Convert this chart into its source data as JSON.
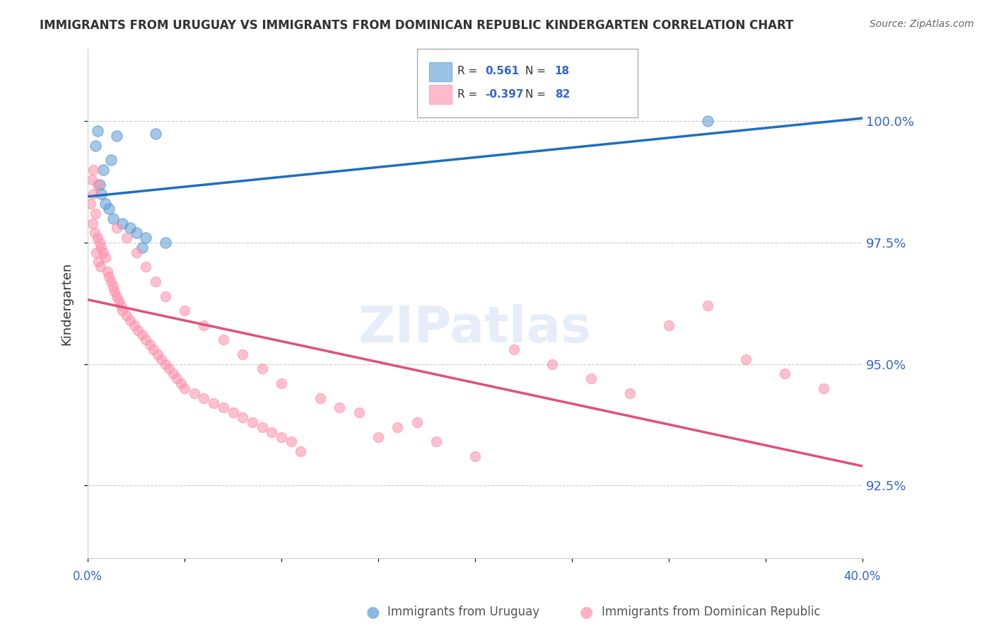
{
  "title": "IMMIGRANTS FROM URUGUAY VS IMMIGRANTS FROM DOMINICAN REPUBLIC KINDERGARTEN CORRELATION CHART",
  "source": "Source: ZipAtlas.com",
  "ylabel": "Kindergarten",
  "y_tick_values": [
    100.0,
    97.5,
    95.0,
    92.5
  ],
  "x_range": [
    0.0,
    40.0
  ],
  "y_range": [
    91.0,
    101.5
  ],
  "legend_r_blue": "0.561",
  "legend_n_blue": "18",
  "legend_r_pink": "-0.397",
  "legend_n_pink": "82",
  "blue_color": "#5B9BD5",
  "pink_color": "#FF8FAB",
  "blue_line_color": "#1F6FBF",
  "pink_line_color": "#E0507A",
  "watermark": "ZIPatlas",
  "blue_dots": [
    [
      0.5,
      99.8
    ],
    [
      1.5,
      99.7
    ],
    [
      3.5,
      99.75
    ],
    [
      1.2,
      99.2
    ],
    [
      0.8,
      99.0
    ],
    [
      0.6,
      98.7
    ],
    [
      0.7,
      98.5
    ],
    [
      0.9,
      98.3
    ],
    [
      1.1,
      98.2
    ],
    [
      1.3,
      98.0
    ],
    [
      1.8,
      97.9
    ],
    [
      2.2,
      97.8
    ],
    [
      2.5,
      97.7
    ],
    [
      3.0,
      97.6
    ],
    [
      4.0,
      97.5
    ],
    [
      2.8,
      97.4
    ],
    [
      32.0,
      100.0
    ],
    [
      0.4,
      99.5
    ]
  ],
  "pink_dots": [
    [
      0.2,
      98.8
    ],
    [
      0.3,
      98.5
    ],
    [
      0.15,
      98.3
    ],
    [
      0.4,
      98.1
    ],
    [
      0.25,
      97.9
    ],
    [
      0.35,
      97.7
    ],
    [
      0.5,
      97.6
    ],
    [
      0.6,
      97.5
    ],
    [
      0.7,
      97.4
    ],
    [
      0.45,
      97.3
    ],
    [
      0.8,
      97.3
    ],
    [
      0.9,
      97.2
    ],
    [
      0.55,
      97.1
    ],
    [
      0.65,
      97.0
    ],
    [
      1.0,
      96.9
    ],
    [
      1.1,
      96.8
    ],
    [
      1.2,
      96.7
    ],
    [
      1.3,
      96.6
    ],
    [
      1.4,
      96.5
    ],
    [
      1.5,
      96.4
    ],
    [
      1.6,
      96.3
    ],
    [
      1.7,
      96.2
    ],
    [
      1.8,
      96.1
    ],
    [
      2.0,
      96.0
    ],
    [
      2.2,
      95.9
    ],
    [
      2.4,
      95.8
    ],
    [
      2.6,
      95.7
    ],
    [
      2.8,
      95.6
    ],
    [
      3.0,
      95.5
    ],
    [
      3.2,
      95.4
    ],
    [
      3.4,
      95.3
    ],
    [
      3.6,
      95.2
    ],
    [
      3.8,
      95.1
    ],
    [
      4.0,
      95.0
    ],
    [
      4.2,
      94.9
    ],
    [
      4.4,
      94.8
    ],
    [
      4.6,
      94.7
    ],
    [
      4.8,
      94.6
    ],
    [
      5.0,
      94.5
    ],
    [
      5.5,
      94.4
    ],
    [
      6.0,
      94.3
    ],
    [
      6.5,
      94.2
    ],
    [
      7.0,
      94.1
    ],
    [
      7.5,
      94.0
    ],
    [
      8.0,
      93.9
    ],
    [
      8.5,
      93.8
    ],
    [
      9.0,
      93.7
    ],
    [
      9.5,
      93.6
    ],
    [
      10.0,
      93.5
    ],
    [
      10.5,
      93.4
    ],
    [
      0.3,
      99.0
    ],
    [
      0.5,
      98.7
    ],
    [
      1.5,
      97.8
    ],
    [
      2.0,
      97.6
    ],
    [
      2.5,
      97.3
    ],
    [
      3.0,
      97.0
    ],
    [
      3.5,
      96.7
    ],
    [
      4.0,
      96.4
    ],
    [
      5.0,
      96.1
    ],
    [
      6.0,
      95.8
    ],
    [
      7.0,
      95.5
    ],
    [
      8.0,
      95.2
    ],
    [
      9.0,
      94.9
    ],
    [
      10.0,
      94.6
    ],
    [
      12.0,
      94.3
    ],
    [
      14.0,
      94.0
    ],
    [
      16.0,
      93.7
    ],
    [
      18.0,
      93.4
    ],
    [
      20.0,
      93.1
    ],
    [
      22.0,
      95.3
    ],
    [
      24.0,
      95.0
    ],
    [
      26.0,
      94.7
    ],
    [
      28.0,
      94.4
    ],
    [
      30.0,
      95.8
    ],
    [
      32.0,
      96.2
    ],
    [
      34.0,
      95.1
    ],
    [
      36.0,
      94.8
    ],
    [
      38.0,
      94.5
    ],
    [
      11.0,
      93.2
    ],
    [
      13.0,
      94.1
    ],
    [
      15.0,
      93.5
    ],
    [
      17.0,
      93.8
    ]
  ]
}
